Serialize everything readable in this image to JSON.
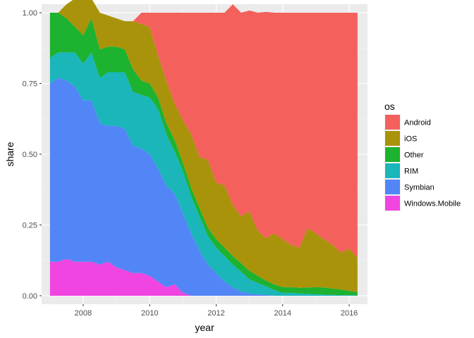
{
  "chart_data": {
    "type": "area",
    "stacked": true,
    "xlabel": "year",
    "ylabel": "share",
    "xlim": [
      2006.75,
      2016.55
    ],
    "ylim": [
      -0.03,
      1.03
    ],
    "x_ticks": [
      2008,
      2010,
      2012,
      2014,
      2016
    ],
    "x_tick_labels": [
      "2008",
      "2010",
      "2012",
      "2014",
      "2016"
    ],
    "y_ticks": [
      0.0,
      0.25,
      0.5,
      0.75,
      1.0
    ],
    "y_tick_labels": [
      "0.00",
      "0.25",
      "0.50",
      "0.75",
      "1.00"
    ],
    "grid": true,
    "legend_title": "os",
    "legend_position": "right",
    "x": [
      2007.0,
      2007.25,
      2007.5,
      2007.75,
      2008.0,
      2008.25,
      2008.5,
      2008.75,
      2009.0,
      2009.25,
      2009.5,
      2009.75,
      2010.0,
      2010.25,
      2010.5,
      2010.75,
      2011.0,
      2011.25,
      2011.5,
      2011.75,
      2012.0,
      2012.25,
      2012.5,
      2012.75,
      2013.0,
      2013.25,
      2013.5,
      2013.75,
      2014.0,
      2014.25,
      2014.5,
      2014.75,
      2015.0,
      2015.25,
      2015.5,
      2015.75,
      2016.0,
      2016.25
    ],
    "series": [
      {
        "name": "Windows.Mobile",
        "color": "#F045E0",
        "values": [
          0.12,
          0.12,
          0.13,
          0.12,
          0.12,
          0.12,
          0.11,
          0.12,
          0.1,
          0.09,
          0.08,
          0.08,
          0.07,
          0.05,
          0.03,
          0.04,
          0.01,
          0.0,
          0.0,
          0.0,
          0.0,
          0.0,
          0.0,
          0.0,
          0.0,
          0.0,
          0.0,
          0.0,
          0.0,
          0.0,
          0.0,
          0.0,
          0.0,
          0.0,
          0.0,
          0.0,
          0.0,
          0.0
        ]
      },
      {
        "name": "Symbian",
        "color": "#5286F6",
        "values": [
          0.63,
          0.65,
          0.63,
          0.62,
          0.57,
          0.57,
          0.5,
          0.48,
          0.5,
          0.5,
          0.45,
          0.44,
          0.43,
          0.4,
          0.36,
          0.32,
          0.28,
          0.22,
          0.16,
          0.11,
          0.08,
          0.05,
          0.03,
          0.015,
          0.008,
          0.005,
          0.003,
          0.0,
          0.0,
          0.0,
          0.0,
          0.0,
          0.0,
          0.0,
          0.0,
          0.0,
          0.0,
          0.0
        ]
      },
      {
        "name": "RIM",
        "color": "#1AB6BA",
        "values": [
          0.09,
          0.09,
          0.1,
          0.12,
          0.13,
          0.17,
          0.16,
          0.19,
          0.19,
          0.2,
          0.19,
          0.19,
          0.2,
          0.21,
          0.18,
          0.15,
          0.15,
          0.13,
          0.12,
          0.1,
          0.09,
          0.09,
          0.08,
          0.07,
          0.05,
          0.04,
          0.03,
          0.02,
          0.01,
          0.01,
          0.008,
          0.007,
          0.005,
          0.004,
          0.003,
          0.002,
          0.002,
          0.001
        ]
      },
      {
        "name": "Other",
        "color": "#1DB22F",
        "values": [
          0.16,
          0.14,
          0.12,
          0.09,
          0.1,
          0.12,
          0.1,
          0.09,
          0.09,
          0.08,
          0.08,
          0.05,
          0.05,
          0.04,
          0.04,
          0.04,
          0.03,
          0.03,
          0.03,
          0.03,
          0.03,
          0.03,
          0.03,
          0.03,
          0.03,
          0.025,
          0.02,
          0.02,
          0.02,
          0.02,
          0.02,
          0.022,
          0.025,
          0.025,
          0.022,
          0.02,
          0.015,
          0.012
        ]
      },
      {
        "name": "iOS",
        "color": "#A9930A",
        "values": [
          0.0,
          0.0,
          0.05,
          0.1,
          0.13,
          0.07,
          0.13,
          0.11,
          0.1,
          0.1,
          0.17,
          0.2,
          0.2,
          0.15,
          0.15,
          0.13,
          0.15,
          0.19,
          0.18,
          0.24,
          0.2,
          0.22,
          0.18,
          0.165,
          0.21,
          0.16,
          0.15,
          0.18,
          0.17,
          0.15,
          0.14,
          0.21,
          0.19,
          0.17,
          0.155,
          0.13,
          0.15,
          0.12
        ]
      },
      {
        "name": "Android",
        "color": "#F4615C",
        "values": [
          0.0,
          0.0,
          0.0,
          0.0,
          0.0,
          0.0,
          0.0,
          0.0,
          0.0,
          0.0,
          0.0,
          0.04,
          0.05,
          0.15,
          0.24,
          0.32,
          0.38,
          0.43,
          0.51,
          0.52,
          0.6,
          0.61,
          0.71,
          0.72,
          0.71,
          0.77,
          0.8,
          0.78,
          0.8,
          0.82,
          0.832,
          0.761,
          0.78,
          0.801,
          0.82,
          0.848,
          0.833,
          0.867
        ]
      }
    ]
  }
}
